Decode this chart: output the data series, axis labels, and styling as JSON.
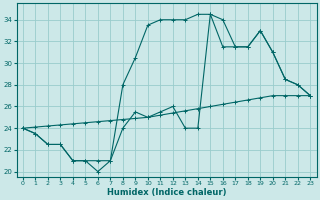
{
  "xlabel": "Humidex (Indice chaleur)",
  "xlim": [
    -0.5,
    23.5
  ],
  "ylim": [
    19.5,
    35.5
  ],
  "yticks": [
    20,
    22,
    24,
    26,
    28,
    30,
    32,
    34
  ],
  "xticks": [
    0,
    1,
    2,
    3,
    4,
    5,
    6,
    7,
    8,
    9,
    10,
    11,
    12,
    13,
    14,
    15,
    16,
    17,
    18,
    19,
    20,
    21,
    22,
    23
  ],
  "bg_color": "#cce8e8",
  "grid_color": "#99cccc",
  "line_color": "#006666",
  "line1_x": [
    0,
    1,
    2,
    3,
    4,
    5,
    6,
    7,
    8,
    9,
    10,
    11,
    12,
    13,
    14,
    15,
    16,
    17,
    18,
    19,
    20,
    21,
    22,
    23
  ],
  "line1_y": [
    24,
    23.5,
    22.5,
    22.5,
    21,
    21,
    21,
    21,
    28,
    30.5,
    33.5,
    34,
    34,
    34,
    34.5,
    34.5,
    31.5,
    31.5,
    31.5,
    33,
    31,
    28.5,
    28,
    27
  ],
  "line2_x": [
    0,
    1,
    2,
    3,
    4,
    5,
    6,
    7,
    8,
    9,
    10,
    11,
    12,
    13,
    14,
    15,
    16,
    17,
    18,
    19,
    20,
    21,
    22,
    23
  ],
  "line2_y": [
    24,
    23.5,
    22.5,
    22.5,
    21,
    21,
    20,
    21,
    24,
    25.5,
    25,
    25.5,
    26,
    24,
    24,
    34.5,
    34,
    31.5,
    31.5,
    33,
    31,
    28.5,
    28,
    27
  ],
  "line3_x": [
    0,
    1,
    2,
    3,
    4,
    5,
    6,
    7,
    8,
    9,
    10,
    11,
    12,
    13,
    14,
    15,
    16,
    17,
    18,
    19,
    20,
    21,
    22,
    23
  ],
  "line3_y": [
    24,
    24.1,
    24.2,
    24.3,
    24.4,
    24.5,
    24.6,
    24.7,
    24.8,
    24.9,
    25.0,
    25.2,
    25.4,
    25.6,
    25.8,
    26.0,
    26.2,
    26.4,
    26.6,
    26.8,
    27.0,
    27.0,
    27.0,
    27.0
  ]
}
